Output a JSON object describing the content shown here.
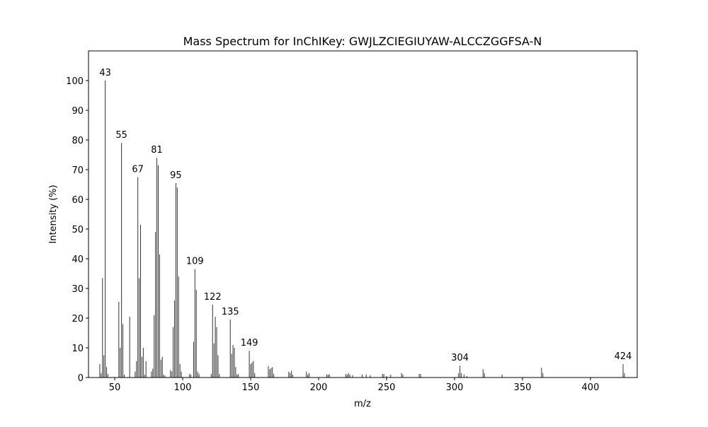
{
  "chart_data": {
    "type": "bar",
    "title": "Mass Spectrum for InChIKey: GWJLZCIEGIUYAW-ALCCZGGFSA-N",
    "xlabel": "m/z",
    "ylabel": "Intensity (%)",
    "xlim": [
      30.7,
      434.4
    ],
    "ylim": [
      0,
      110
    ],
    "xticks": [
      50,
      100,
      150,
      200,
      250,
      300,
      350,
      400
    ],
    "yticks": [
      0,
      10,
      20,
      30,
      40,
      50,
      60,
      70,
      80,
      90,
      100
    ],
    "grid": false,
    "peaks": [
      [
        39,
        4.5
      ],
      [
        40,
        1.5
      ],
      [
        41,
        33.5
      ],
      [
        42,
        7.5
      ],
      [
        43,
        100
      ],
      [
        44,
        3.5
      ],
      [
        45,
        1.2
      ],
      [
        53,
        25.5
      ],
      [
        54,
        10
      ],
      [
        55,
        79
      ],
      [
        56,
        18
      ],
      [
        57,
        1
      ],
      [
        61,
        20.5
      ],
      [
        65,
        2
      ],
      [
        66,
        5.5
      ],
      [
        67,
        67.5
      ],
      [
        68,
        33.5
      ],
      [
        69,
        51.5
      ],
      [
        70,
        7
      ],
      [
        71,
        10
      ],
      [
        72,
        1
      ],
      [
        73,
        5.5
      ],
      [
        77,
        2
      ],
      [
        78,
        3
      ],
      [
        79,
        21
      ],
      [
        80,
        49
      ],
      [
        81,
        74
      ],
      [
        82,
        71.5
      ],
      [
        83,
        41.5
      ],
      [
        84,
        6
      ],
      [
        85,
        7
      ],
      [
        86,
        1
      ],
      [
        87,
        0.6
      ],
      [
        91,
        2.5
      ],
      [
        92,
        2
      ],
      [
        93,
        17
      ],
      [
        94,
        26
      ],
      [
        95,
        65.5
      ],
      [
        96,
        64
      ],
      [
        97,
        34
      ],
      [
        98,
        4.5
      ],
      [
        99,
        2
      ],
      [
        105,
        1.2
      ],
      [
        106,
        1
      ],
      [
        108,
        12
      ],
      [
        109,
        36.5
      ],
      [
        110,
        29.5
      ],
      [
        111,
        2
      ],
      [
        112,
        1.2
      ],
      [
        121,
        1.2
      ],
      [
        122,
        24.5
      ],
      [
        123,
        11.5
      ],
      [
        124,
        20.5
      ],
      [
        125,
        17
      ],
      [
        126,
        7.5
      ],
      [
        127,
        1.2
      ],
      [
        135,
        19.5
      ],
      [
        136,
        8
      ],
      [
        137,
        11
      ],
      [
        138,
        10
      ],
      [
        139,
        3.5
      ],
      [
        140,
        1
      ],
      [
        141,
        1.2
      ],
      [
        149,
        9
      ],
      [
        150,
        4.5
      ],
      [
        151,
        5
      ],
      [
        152,
        5.5
      ],
      [
        153,
        1.5
      ],
      [
        163,
        3.8
      ],
      [
        164,
        2.8
      ],
      [
        165,
        3.2
      ],
      [
        166,
        3.5
      ],
      [
        167,
        1.2
      ],
      [
        178,
        2
      ],
      [
        179,
        1.5
      ],
      [
        180,
        2.3
      ],
      [
        181,
        1
      ],
      [
        191,
        2
      ],
      [
        192,
        1
      ],
      [
        193,
        1.5
      ],
      [
        206,
        1
      ],
      [
        207,
        1
      ],
      [
        208,
        1
      ],
      [
        220,
        1.2
      ],
      [
        221,
        1
      ],
      [
        222,
        1.5
      ],
      [
        223,
        1
      ],
      [
        225,
        0.8
      ],
      [
        232,
        1
      ],
      [
        235,
        1
      ],
      [
        238,
        0.8
      ],
      [
        247,
        1.2
      ],
      [
        248,
        1.2
      ],
      [
        250,
        0.5
      ],
      [
        253,
        1
      ],
      [
        261,
        1.5
      ],
      [
        262,
        1
      ],
      [
        274,
        1.2
      ],
      [
        275,
        1.2
      ],
      [
        303,
        1.5
      ],
      [
        304,
        4
      ],
      [
        305,
        1.5
      ],
      [
        307,
        1
      ],
      [
        309,
        0.5
      ],
      [
        321,
        2.8
      ],
      [
        322,
        1.5
      ],
      [
        335,
        1
      ],
      [
        364,
        3.3
      ],
      [
        365,
        1.5
      ],
      [
        424,
        4.5
      ],
      [
        425,
        1.5
      ]
    ],
    "annotations": [
      "43",
      "55",
      "67",
      "81",
      "95",
      "109",
      "122",
      "135",
      "149",
      "304",
      "424"
    ]
  }
}
